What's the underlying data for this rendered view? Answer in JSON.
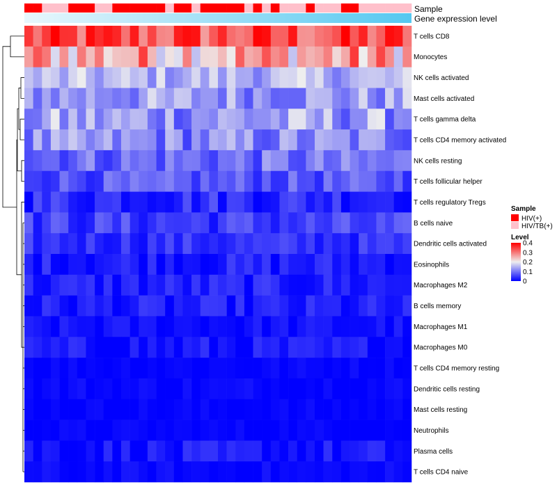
{
  "chart_data": {
    "type": "heatmap",
    "title": "",
    "tracks": {
      "sample_label": "Sample",
      "expression_label": "Gene expression level"
    },
    "rows": [
      "T cells CD8",
      "Monocytes",
      "NK cells activated",
      "Mast cells activated",
      "T cells gamma delta",
      "T cells CD4 memory activated",
      "NK cells resting",
      "T cells follicular helper",
      "T cells regulatory  Tregs",
      "B cells naive",
      "Dendritic cells activated",
      "Eosinophils",
      "Macrophages M2",
      "B cells memory",
      "Macrophages M1",
      "Macrophages M0",
      "T cells CD4 memory resting",
      "Dendritic cells resting",
      "Mast cells resting",
      "Neutrophils",
      "Plasma cells",
      "T cells CD4 naive"
    ],
    "columns": 44,
    "sample_groups": [
      "HIV(+)",
      "HIV(+)",
      "HIV/TB(+)",
      "HIV/TB(+)",
      "HIV/TB(+)",
      "HIV(+)",
      "HIV(+)",
      "HIV(+)",
      "HIV/TB(+)",
      "HIV/TB(+)",
      "HIV(+)",
      "HIV(+)",
      "HIV(+)",
      "HIV(+)",
      "HIV(+)",
      "HIV(+)",
      "HIV/TB(+)",
      "HIV(+)",
      "HIV(+)",
      "HIV/TB(+)",
      "HIV(+)",
      "HIV(+)",
      "HIV(+)",
      "HIV(+)",
      "HIV(+)",
      "HIV/TB(+)",
      "HIV(+)",
      "HIV/TB(+)",
      "HIV(+)",
      "HIV/TB(+)",
      "HIV/TB(+)",
      "HIV/TB(+)",
      "HIV(+)",
      "HIV/TB(+)",
      "HIV/TB(+)",
      "HIV/TB(+)",
      "HIV(+)",
      "HIV(+)",
      "HIV/TB(+)",
      "HIV/TB(+)",
      "HIV/TB(+)",
      "HIV/TB(+)",
      "HIV/TB(+)",
      "HIV/TB(+)"
    ],
    "row_profiles": [
      {
        "row": "T cells CD8",
        "mean": 0.33,
        "spread": 0.08
      },
      {
        "row": "Monocytes",
        "mean": 0.26,
        "spread": 0.1
      },
      {
        "row": "NK cells activated",
        "mean": 0.15,
        "spread": 0.05
      },
      {
        "row": "Mast cells activated",
        "mean": 0.13,
        "spread": 0.06
      },
      {
        "row": "T cells gamma delta",
        "mean": 0.13,
        "spread": 0.07
      },
      {
        "row": "T cells CD4 memory activated",
        "mean": 0.11,
        "spread": 0.06
      },
      {
        "row": "NK cells resting",
        "mean": 0.09,
        "spread": 0.05
      },
      {
        "row": "T cells follicular helper",
        "mean": 0.07,
        "spread": 0.04
      },
      {
        "row": "T cells regulatory  Tregs",
        "mean": 0.04,
        "spread": 0.04
      },
      {
        "row": "B cells naive",
        "mean": 0.05,
        "spread": 0.04
      },
      {
        "row": "Dendritic cells activated",
        "mean": 0.04,
        "spread": 0.03
      },
      {
        "row": "Eosinophils",
        "mean": 0.025,
        "spread": 0.03
      },
      {
        "row": "Macrophages M2",
        "mean": 0.025,
        "spread": 0.03
      },
      {
        "row": "B cells memory",
        "mean": 0.02,
        "spread": 0.03
      },
      {
        "row": "Macrophages M1",
        "mean": 0.012,
        "spread": 0.02
      },
      {
        "row": "Macrophages M0",
        "mean": 0.015,
        "spread": 0.03
      },
      {
        "row": "T cells CD4 memory resting",
        "mean": 0.005,
        "spread": 0.01
      },
      {
        "row": "Dendritic cells resting",
        "mean": 0.005,
        "spread": 0.015
      },
      {
        "row": "Mast cells resting",
        "mean": 0.003,
        "spread": 0.01
      },
      {
        "row": "Neutrophils",
        "mean": 0.003,
        "spread": 0.01
      },
      {
        "row": "Plasma cells",
        "mean": 0.015,
        "spread": 0.03
      },
      {
        "row": "T cells CD4 naive",
        "mean": 0.005,
        "spread": 0.015
      }
    ],
    "color_scale": {
      "min": 0,
      "mid": 0.2,
      "max": 0.4,
      "low_color": "#0000ff",
      "mid_color": "#eeeeee",
      "high_color": "#ff0000"
    },
    "legend": {
      "sample_title": "Sample",
      "sample_entries": [
        {
          "label": "HIV(+)",
          "color": "#ff0000"
        },
        {
          "label": "HIV/TB(+)",
          "color": "#ffc0cb"
        }
      ],
      "level_title": "Level",
      "level_ticks": [
        {
          "label": "0.4",
          "value": 0.4
        },
        {
          "label": "0.3",
          "value": 0.3
        },
        {
          "label": "0.2",
          "value": 0.2
        },
        {
          "label": "0.1",
          "value": 0.1
        },
        {
          "label": "0",
          "value": 0
        }
      ]
    },
    "expression_track_colors": [
      "#e8f7fd",
      "#55c8f0"
    ]
  }
}
